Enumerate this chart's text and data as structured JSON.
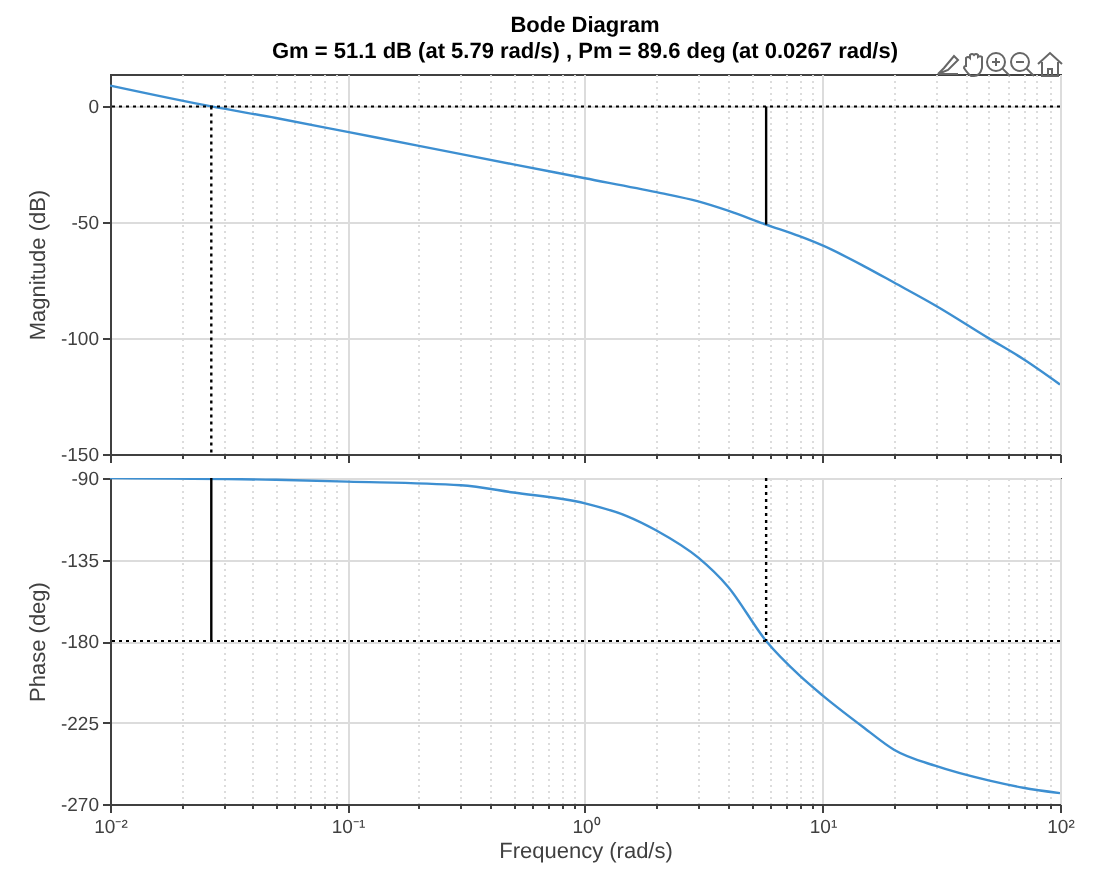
{
  "chart_data": [
    {
      "type": "line",
      "title": "Bode Diagram",
      "subtitle": "Gm = 51.1 dB (at 5.79 rad/s) ,  Pm = 89.6 deg (at 0.0267 rad/s)",
      "ylabel": "Magnitude (dB)",
      "log": "x",
      "xlim": [
        0.01,
        100
      ],
      "xticks": [
        {
          "value": 0.01,
          "label": null
        },
        {
          "value": 0.02,
          "label": null
        },
        {
          "value": 0.03,
          "label": null
        },
        {
          "value": 0.04,
          "label": null
        },
        {
          "value": 0.05,
          "label": null
        },
        {
          "value": 0.06,
          "label": null
        },
        {
          "value": 0.07,
          "label": null
        },
        {
          "value": 0.08,
          "label": null
        },
        {
          "value": 0.09,
          "label": null
        },
        {
          "value": 0.1,
          "label": null
        },
        {
          "value": 0.2,
          "label": null
        },
        {
          "value": 0.3,
          "label": null
        },
        {
          "value": 0.4,
          "label": null
        },
        {
          "value": 0.5,
          "label": null
        },
        {
          "value": 0.6,
          "label": null
        },
        {
          "value": 0.7,
          "label": null
        },
        {
          "value": 0.8,
          "label": null
        },
        {
          "value": 0.9,
          "label": null
        },
        {
          "value": 1,
          "label": null
        },
        {
          "value": 2,
          "label": null
        },
        {
          "value": 3,
          "label": null
        },
        {
          "value": 4,
          "label": null
        },
        {
          "value": 5,
          "label": null
        },
        {
          "value": 6,
          "label": null
        },
        {
          "value": 7,
          "label": null
        },
        {
          "value": 8,
          "label": null
        },
        {
          "value": 9,
          "label": null
        },
        {
          "value": 10,
          "label": null
        },
        {
          "value": 20,
          "label": null
        },
        {
          "value": 30,
          "label": null
        },
        {
          "value": 40,
          "label": null
        },
        {
          "value": 50,
          "label": null
        },
        {
          "value": 60,
          "label": null
        },
        {
          "value": 70,
          "label": null
        },
        {
          "value": 80,
          "label": null
        },
        {
          "value": 90,
          "label": null
        },
        {
          "value": 100,
          "label": null
        }
      ],
      "ylim": [
        -150,
        14
      ],
      "yticks": [
        -150,
        -100,
        -50,
        0
      ],
      "grid": true,
      "tick_labels": "y",
      "line_style": "solid",
      "series": [
        {
          "color": "#3d8fd1",
          "x": [
            0.01,
            0.0267,
            0.05,
            0.1,
            0.2,
            0.5,
            1,
            2,
            3,
            4,
            5.79,
            8,
            10,
            15,
            20,
            30,
            50,
            70,
            100
          ],
          "values": [
            9,
            0,
            -5,
            -11,
            -17,
            -25,
            -31,
            -37,
            -41,
            -45,
            -51,
            -56,
            -60,
            -69,
            -76,
            -86,
            -100,
            -109,
            -120
          ]
        },
        {
          "color": "#000000",
          "x": [
            5.79,
            5.79
          ],
          "values": [
            0,
            -51
          ]
        },
        {
          "color": "#000000",
          "line_style": "dotted",
          "x": [
            0.0267,
            0.0267
          ],
          "values": [
            0,
            -150
          ]
        }
      ],
      "ref_lines": [
        {
          "axis": "y",
          "value": 0,
          "color": "#000000",
          "line_style": "dotted"
        }
      ]
    },
    {
      "type": "line",
      "xlabel": "Frequency  (rad/s)",
      "ylabel": "Phase (deg)",
      "log": "x",
      "xlim": [
        0.01,
        100
      ],
      "xticks": [
        {
          "value": 0.01,
          "label": "10⁻²"
        },
        {
          "value": 0.02,
          "label": null
        },
        {
          "value": 0.03,
          "label": null
        },
        {
          "value": 0.04,
          "label": null
        },
        {
          "value": 0.05,
          "label": null
        },
        {
          "value": 0.06,
          "label": null
        },
        {
          "value": 0.07,
          "label": null
        },
        {
          "value": 0.08,
          "label": null
        },
        {
          "value": 0.09,
          "label": null
        },
        {
          "value": 0.1,
          "label": "10⁻¹"
        },
        {
          "value": 0.2,
          "label": null
        },
        {
          "value": 0.3,
          "label": null
        },
        {
          "value": 0.4,
          "label": null
        },
        {
          "value": 0.5,
          "label": null
        },
        {
          "value": 0.6,
          "label": null
        },
        {
          "value": 0.7,
          "label": null
        },
        {
          "value": 0.8,
          "label": null
        },
        {
          "value": 0.9,
          "label": null
        },
        {
          "value": 1,
          "label": "10⁰"
        },
        {
          "value": 2,
          "label": null
        },
        {
          "value": 3,
          "label": null
        },
        {
          "value": 4,
          "label": null
        },
        {
          "value": 5,
          "label": null
        },
        {
          "value": 6,
          "label": null
        },
        {
          "value": 7,
          "label": null
        },
        {
          "value": 8,
          "label": null
        },
        {
          "value": 9,
          "label": null
        },
        {
          "value": 10,
          "label": "10¹"
        },
        {
          "value": 20,
          "label": null
        },
        {
          "value": 30,
          "label": null
        },
        {
          "value": 40,
          "label": null
        },
        {
          "value": 50,
          "label": null
        },
        {
          "value": 60,
          "label": null
        },
        {
          "value": 70,
          "label": null
        },
        {
          "value": 80,
          "label": null
        },
        {
          "value": 90,
          "label": null
        },
        {
          "value": 100,
          "label": "10²"
        }
      ],
      "ylim": [
        -270,
        -90
      ],
      "yticks": [
        -270,
        -225,
        -180,
        -135,
        -90
      ],
      "grid": true,
      "line_style": "solid",
      "series": [
        {
          "color": "#3d8fd1",
          "x": [
            0.01,
            0.05,
            0.1,
            0.3,
            0.5,
            1,
            1.5,
            2,
            3,
            4,
            5.79,
            8,
            10,
            15,
            20,
            30,
            50,
            70,
            100
          ],
          "values": [
            -90,
            -91,
            -92,
            -94,
            -98,
            -104,
            -111,
            -119,
            -134,
            -150,
            -180,
            -199,
            -210,
            -228,
            -240,
            -249,
            -257,
            -261,
            -264
          ]
        },
        {
          "color": "#000000",
          "x": [
            0.0267,
            0.0267
          ],
          "values": [
            -90,
            -180
          ]
        },
        {
          "color": "#000000",
          "line_style": "dotted",
          "x": [
            5.79,
            5.79
          ],
          "values": [
            -90,
            -180
          ]
        }
      ],
      "ref_lines": [
        {
          "axis": "y",
          "value": -180,
          "color": "#000000",
          "line_style": "dotted"
        }
      ]
    }
  ]
}
